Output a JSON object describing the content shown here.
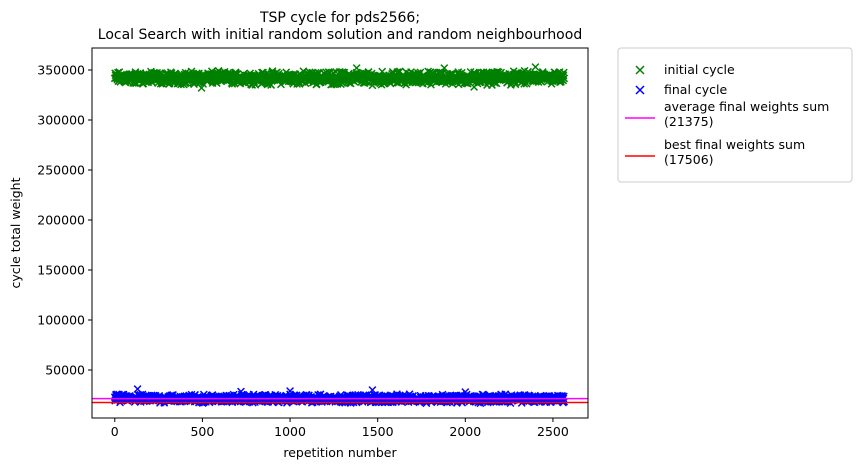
{
  "chart_data": {
    "type": "scatter",
    "title": "TSP cycle for pds2566;\nLocal Search with initial random solution and random neighbourhood",
    "title_lines": [
      "TSP cycle for pds2566;",
      "Local Search with initial random solution and random neighbourhood"
    ],
    "xlabel": "repetition number",
    "ylabel": "cycle total weight",
    "xlim": [
      -130,
      2700
    ],
    "ylim": [
      2000,
      372000
    ],
    "xticks": [
      0,
      500,
      1000,
      1500,
      2000,
      2500
    ],
    "yticks": [
      50000,
      100000,
      150000,
      200000,
      250000,
      300000,
      350000
    ],
    "grid": false,
    "legend_position": "outside-right",
    "n_repetitions": 2566,
    "series": [
      {
        "name": "initial cycle",
        "marker": "x",
        "color": "#008000",
        "y_center": 342000,
        "y_spread": [
          335000,
          350000
        ],
        "outliers": [
          {
            "x": 495,
            "y": 332000
          },
          {
            "x": 1380,
            "y": 352000
          },
          {
            "x": 1880,
            "y": 352000
          },
          {
            "x": 2400,
            "y": 353000
          },
          {
            "x": 2050,
            "y": 333000
          }
        ]
      },
      {
        "name": "final cycle",
        "marker": "x",
        "color": "#0000ff",
        "y_center": 21375,
        "y_spread": [
          17506,
          27000
        ],
        "outliers": [
          {
            "x": 130,
            "y": 31000
          },
          {
            "x": 1470,
            "y": 30000
          },
          {
            "x": 1000,
            "y": 29000
          },
          {
            "x": 720,
            "y": 28500
          },
          {
            "x": 2000,
            "y": 28000
          }
        ]
      }
    ],
    "hlines": [
      {
        "name": "average final weights sum\n(21375)",
        "label_lines": [
          "average final weights sum",
          "(21375)"
        ],
        "y": 21375,
        "color": "#ff00ff"
      },
      {
        "name": "best final weights sum\n(17506)",
        "label_lines": [
          "best final weights sum",
          "(17506)"
        ],
        "y": 17506,
        "color": "#ff0000"
      }
    ]
  }
}
